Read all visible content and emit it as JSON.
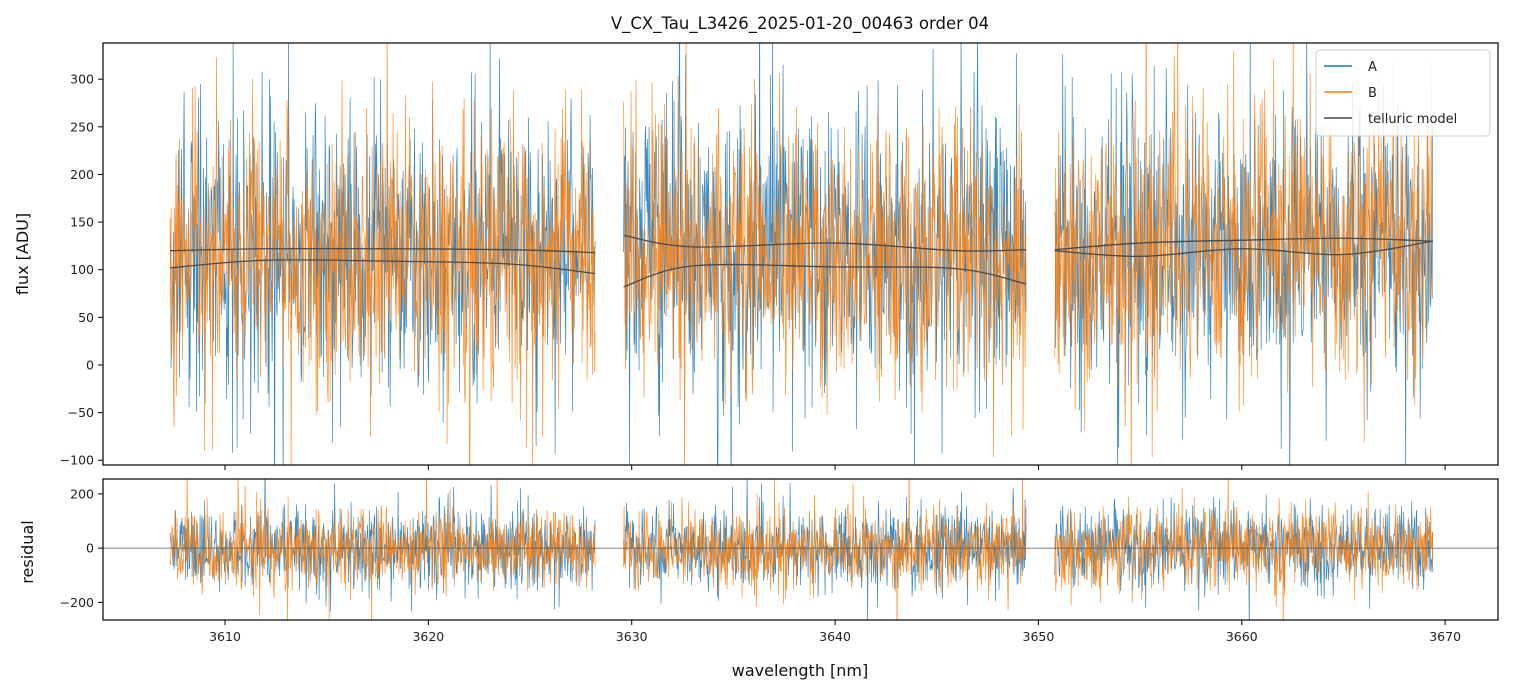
{
  "chart_data": [
    {
      "type": "line",
      "title": "V_CX_Tau_L3426_2025-01-20_00463  order 04",
      "xlabel": "",
      "ylabel": "flux [ADU]",
      "xlim": [
        3604.0,
        3672.6
      ],
      "ylim": [
        -105,
        338
      ],
      "yticks": [
        -100,
        -50,
        0,
        50,
        100,
        150,
        200,
        250,
        300
      ],
      "yticklabels": [
        "−100",
        "−50",
        "0",
        "50",
        "100",
        "150",
        "200",
        "250",
        "300"
      ],
      "xticks": [
        3610,
        3620,
        3630,
        3640,
        3650,
        3660,
        3670
      ],
      "grid": false,
      "legend": "top-right",
      "segments": [
        [
          3607.3,
          3628.2
        ],
        [
          3629.6,
          3649.4
        ],
        [
          3650.8,
          3669.4
        ]
      ],
      "series": [
        {
          "name": "A",
          "color": "#1f77b4",
          "mean": 120,
          "noise_sd": 75
        },
        {
          "name": "B",
          "color": "#ff7f0e",
          "mean": 120,
          "noise_sd": 70
        },
        {
          "name": "telluric model",
          "color": "#4a4a4a",
          "curves": [
            {
              "segment": 0,
              "upper": [
                [
                  3607.3,
                  120
                ],
                [
                  3612,
                  122
                ],
                [
                  3618,
                  122
                ],
                [
                  3624,
                  121
                ],
                [
                  3628.2,
                  118
                ]
              ],
              "lower": [
                [
                  3607.3,
                  102
                ],
                [
                  3612,
                  110
                ],
                [
                  3618,
                  109
                ],
                [
                  3624,
                  106
                ],
                [
                  3628.2,
                  96
                ]
              ]
            },
            {
              "segment": 1,
              "upper": [
                [
                  3629.6,
                  136
                ],
                [
                  3633,
                  124
                ],
                [
                  3640,
                  128
                ],
                [
                  3646,
                  120
                ],
                [
                  3649.4,
                  121
                ]
              ],
              "lower": [
                [
                  3629.6,
                  82
                ],
                [
                  3633,
                  104
                ],
                [
                  3640,
                  103
                ],
                [
                  3646,
                  101
                ],
                [
                  3649.4,
                  85
                ]
              ]
            },
            {
              "segment": 2,
              "upper": [
                [
                  3650.8,
                  121
                ],
                [
                  3655,
                  128
                ],
                [
                  3660,
                  131
                ],
                [
                  3665,
                  133
                ],
                [
                  3669.4,
                  130
                ]
              ],
              "lower": [
                [
                  3650.8,
                  120
                ],
                [
                  3655,
                  114
                ],
                [
                  3660,
                  122
                ],
                [
                  3665,
                  116
                ],
                [
                  3669.4,
                  130
                ]
              ]
            }
          ]
        }
      ]
    },
    {
      "type": "line",
      "title": "",
      "xlabel": "wavelength [nm]",
      "ylabel": "residual",
      "xlim": [
        3604.0,
        3672.6
      ],
      "ylim": [
        -265,
        255
      ],
      "yticks": [
        -200,
        0,
        200
      ],
      "yticklabels": [
        "−200",
        "0",
        "200"
      ],
      "xticks": [
        3610,
        3620,
        3630,
        3640,
        3650,
        3660,
        3670
      ],
      "xticklabels": [
        "3610",
        "3620",
        "3630",
        "3640",
        "3650",
        "3660",
        "3670"
      ],
      "grid": false,
      "zero_line": true,
      "series": [
        {
          "name": "A",
          "color": "#1f77b4",
          "mean": 0,
          "noise_sd": 75
        },
        {
          "name": "B",
          "color": "#ff7f0e",
          "mean": 0,
          "noise_sd": 72
        }
      ]
    }
  ]
}
